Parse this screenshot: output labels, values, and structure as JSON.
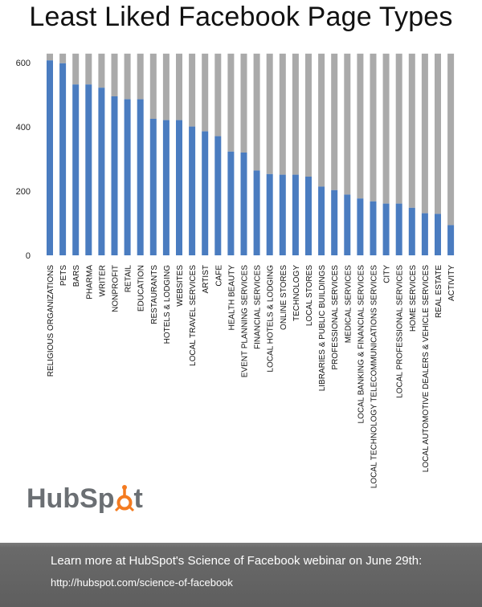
{
  "title": "Least Liked Facebook Page Types",
  "logo": {
    "text_before": "HubSp",
    "text_after": "t",
    "name": "HubSpot",
    "accent": "#f47b20"
  },
  "footer": {
    "line1": "Learn more at HubSpot's Science of Facebook webinar on June 29th:",
    "line2": "http://hubspot.com/science-of-facebook"
  },
  "colors": {
    "bar": "#4a7cc0",
    "remainder": "#aaaaaa",
    "footer": "#606060"
  },
  "chart_data": {
    "type": "bar",
    "stacked": true,
    "ylim": [
      0,
      628
    ],
    "yticks": [
      0,
      200,
      400,
      600
    ],
    "grid": false,
    "categories": [
      "RELIGIOUS ORGANIZATIONS",
      "PETS",
      "BARS",
      "PHARMA",
      "WRITER",
      "NONPROFIT",
      "RETAIL",
      "EDUCATION",
      "RESTAURANTS",
      "HOTELS & LODGING",
      "WEBSITES",
      "LOCAL TRAVEL SERVICES",
      "ARTIST",
      "CAFE",
      "HEALTH BEAUTY",
      "EVENT PLANNING SERVICES",
      "FINANCIAL SERVICES",
      "LOCAL HOTELS & LODGING",
      "ONLINE STORES",
      "TECHNOLOGY",
      "LOCAL STORES",
      "LIBRARIES & PUBLIC BUILDINGS",
      "PROFESSIONAL SERVICES",
      "MEDICAL SERVICES",
      "LOCAL BANKING & FINANCIAL SERVICES",
      "LOCAL TECHNOLOGY TELECOMMUNICATIONS SERVICES",
      "CITY",
      "LOCAL PROFESSIONAL SERVICES",
      "HOME SERVICES",
      "LOCAL AUTOMOTIVE DEALERS & VEHICLE SERVICES",
      "REAL ESTATE",
      "ACTIVITY"
    ],
    "series": [
      {
        "values": [
          607,
          598,
          532,
          532,
          522,
          495,
          486,
          486,
          425,
          421,
          421,
          401,
          386,
          371,
          323,
          320,
          264,
          253,
          251,
          251,
          245,
          214,
          203,
          189,
          177,
          168,
          161,
          161,
          148,
          131,
          129,
          94
        ]
      },
      {
        "values": [
          21,
          30,
          96,
          96,
          106,
          133,
          142,
          142,
          203,
          207,
          207,
          227,
          242,
          257,
          305,
          308,
          364,
          375,
          377,
          377,
          383,
          414,
          425,
          439,
          451,
          460,
          467,
          467,
          480,
          497,
          499,
          534
        ]
      }
    ]
  }
}
